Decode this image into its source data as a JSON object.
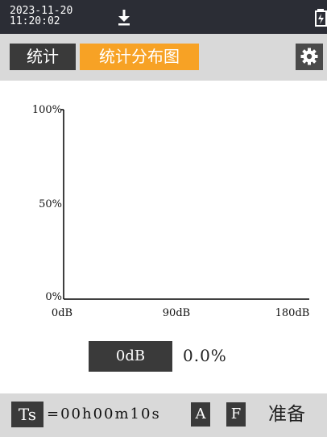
{
  "status": {
    "date": "2023-11-20",
    "time": "11:20:02",
    "download_icon": "download-icon",
    "battery_icon": "battery-icon"
  },
  "toolbar": {
    "tab_statistics": "统计",
    "tab_distribution": "统计分布图",
    "settings_icon": "gear-icon",
    "active_color": "#f7a225"
  },
  "chart_data": {
    "type": "bar",
    "y_ticks": [
      "100%",
      "50%",
      "0%"
    ],
    "x_ticks": [
      "0dB",
      "90dB",
      "180dB"
    ],
    "xlim": [
      0,
      180
    ],
    "ylim": [
      0,
      100
    ],
    "series": []
  },
  "readout": {
    "level": "0dB",
    "percent": "0.0%"
  },
  "bottom": {
    "ts_label": "Ts",
    "ts_value": "=00h00m10s",
    "weighting_a": "A",
    "weighting_f": "F",
    "state": "准备"
  }
}
